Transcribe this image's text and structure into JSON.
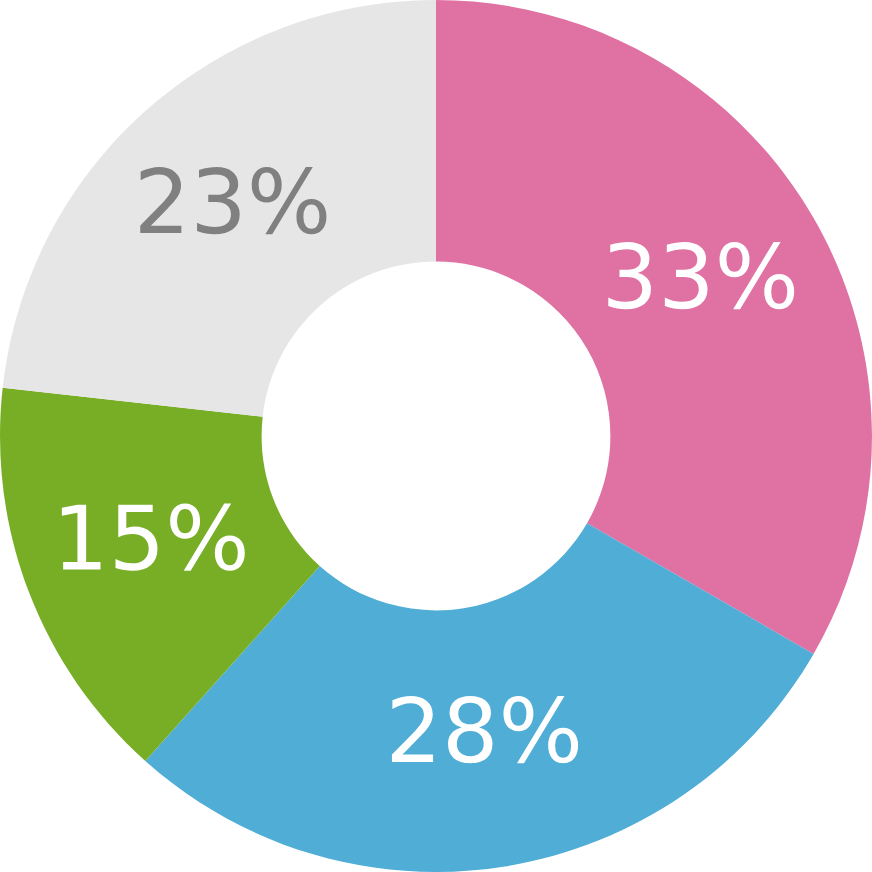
{
  "chart_data": {
    "type": "donut",
    "categories": [
      null,
      null,
      null,
      null
    ],
    "values": [
      33,
      28,
      15,
      23
    ],
    "colors": [
      "#df72a3",
      "#4fadd6",
      "#78ae26",
      "#e6e6e6"
    ],
    "value_labels": [
      "33%",
      "28%",
      "15%",
      "23%"
    ],
    "legend": false
  }
}
